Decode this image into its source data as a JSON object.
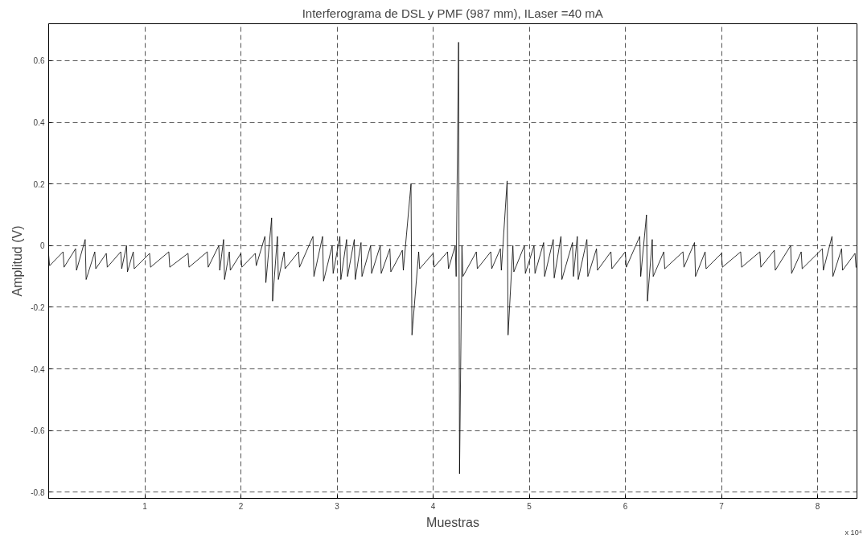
{
  "chart_data": {
    "type": "line",
    "title": "Interferograma de DSL y PMF (987 mm), ILaser =40 mA",
    "xlabel": "Muestras",
    "ylabel": "Amplitud (V)",
    "annotations": [
      "x 10⁴"
    ],
    "xlim": [
      0,
      8.41
    ],
    "ylim": [
      -0.82,
      0.72
    ],
    "xticks": [
      1,
      2,
      3,
      4,
      5,
      6,
      7,
      8
    ],
    "yticks": [
      -0.8,
      -0.6,
      -0.4,
      -0.2,
      0,
      0.2,
      0.4,
      0.6
    ],
    "grid": true,
    "line_style": "solid",
    "marker": "none",
    "series": [
      {
        "color": "#000000",
        "x": [
          0,
          0.01,
          0.15,
          0.16,
          0.28,
          0.29,
          0.38,
          0.39,
          0.48,
          0.49,
          0.6,
          0.61,
          0.75,
          0.76,
          0.81,
          0.82,
          0.88,
          0.89,
          1.05,
          1.06,
          1.25,
          1.26,
          1.45,
          1.46,
          1.65,
          1.66,
          1.77,
          1.78,
          1.82,
          1.83,
          1.88,
          1.89,
          2.0,
          2.01,
          2.15,
          2.16,
          2.25,
          2.26,
          2.32,
          2.33,
          2.38,
          2.39,
          2.45,
          2.46,
          2.6,
          2.61,
          2.75,
          2.76,
          2.85,
          2.86,
          2.95,
          2.96,
          3.03,
          3.04,
          3.1,
          3.11,
          3.18,
          3.19,
          3.25,
          3.26,
          3.35,
          3.36,
          3.45,
          3.46,
          3.55,
          3.56,
          3.68,
          3.69,
          3.77,
          3.78,
          3.85,
          3.86,
          4.0,
          4.01,
          4.15,
          4.16,
          4.23,
          4.24,
          4.265,
          4.275,
          4.3,
          4.31,
          4.45,
          4.46,
          4.6,
          4.61,
          4.7,
          4.71,
          4.77,
          4.78,
          4.83,
          4.84,
          4.95,
          4.96,
          5.05,
          5.06,
          5.15,
          5.16,
          5.25,
          5.26,
          5.33,
          5.34,
          5.45,
          5.46,
          5.5,
          5.51,
          5.6,
          5.61,
          5.7,
          5.71,
          5.85,
          5.86,
          6.0,
          6.01,
          6.15,
          6.16,
          6.22,
          6.23,
          6.28,
          6.29,
          6.4,
          6.41,
          6.6,
          6.61,
          6.72,
          6.73,
          6.83,
          6.84,
          7.0,
          7.01,
          7.2,
          7.21,
          7.4,
          7.41,
          7.55,
          7.56,
          7.72,
          7.73,
          7.83,
          7.84,
          8.05,
          8.06,
          8.15,
          8.16,
          8.25,
          8.26,
          8.39,
          8.4
        ],
        "values": [
          -0.03,
          -0.065,
          -0.02,
          -0.07,
          -0.01,
          -0.08,
          0.02,
          -0.11,
          -0.02,
          -0.075,
          -0.025,
          -0.07,
          -0.02,
          -0.075,
          0.0,
          -0.085,
          -0.02,
          -0.075,
          -0.025,
          -0.07,
          -0.02,
          -0.07,
          -0.025,
          -0.07,
          -0.02,
          -0.07,
          0.0,
          -0.08,
          0.02,
          -0.11,
          -0.02,
          -0.08,
          -0.025,
          -0.07,
          -0.025,
          -0.065,
          0.03,
          -0.12,
          0.09,
          -0.18,
          0.03,
          -0.11,
          -0.02,
          -0.075,
          -0.02,
          -0.07,
          0.03,
          -0.1,
          0.03,
          -0.115,
          0.0,
          -0.09,
          0.03,
          -0.11,
          0.02,
          -0.1,
          0.02,
          -0.11,
          0.01,
          -0.1,
          0.0,
          -0.09,
          0.0,
          -0.09,
          -0.01,
          -0.085,
          -0.015,
          -0.08,
          0.2,
          -0.29,
          -0.02,
          -0.075,
          -0.025,
          -0.07,
          -0.02,
          -0.075,
          0.0,
          -0.1,
          0.66,
          -0.74,
          0.0,
          -0.1,
          -0.02,
          -0.075,
          -0.02,
          -0.075,
          -0.01,
          -0.08,
          0.21,
          -0.29,
          0.0,
          -0.085,
          0.0,
          -0.09,
          0.0,
          -0.09,
          0.01,
          -0.1,
          0.02,
          -0.105,
          0.03,
          -0.11,
          0.01,
          -0.1,
          0.03,
          -0.11,
          0.02,
          -0.1,
          -0.01,
          -0.08,
          -0.02,
          -0.075,
          -0.02,
          -0.07,
          0.03,
          -0.1,
          0.1,
          -0.18,
          0.02,
          -0.1,
          -0.02,
          -0.075,
          -0.02,
          -0.07,
          0.01,
          -0.1,
          -0.02,
          -0.075,
          -0.025,
          -0.07,
          -0.02,
          -0.07,
          -0.02,
          -0.07,
          -0.015,
          -0.08,
          0.0,
          -0.09,
          -0.02,
          -0.075,
          -0.01,
          -0.08,
          0.03,
          -0.1,
          -0.01,
          -0.08,
          -0.025,
          -0.07
        ]
      }
    ]
  }
}
